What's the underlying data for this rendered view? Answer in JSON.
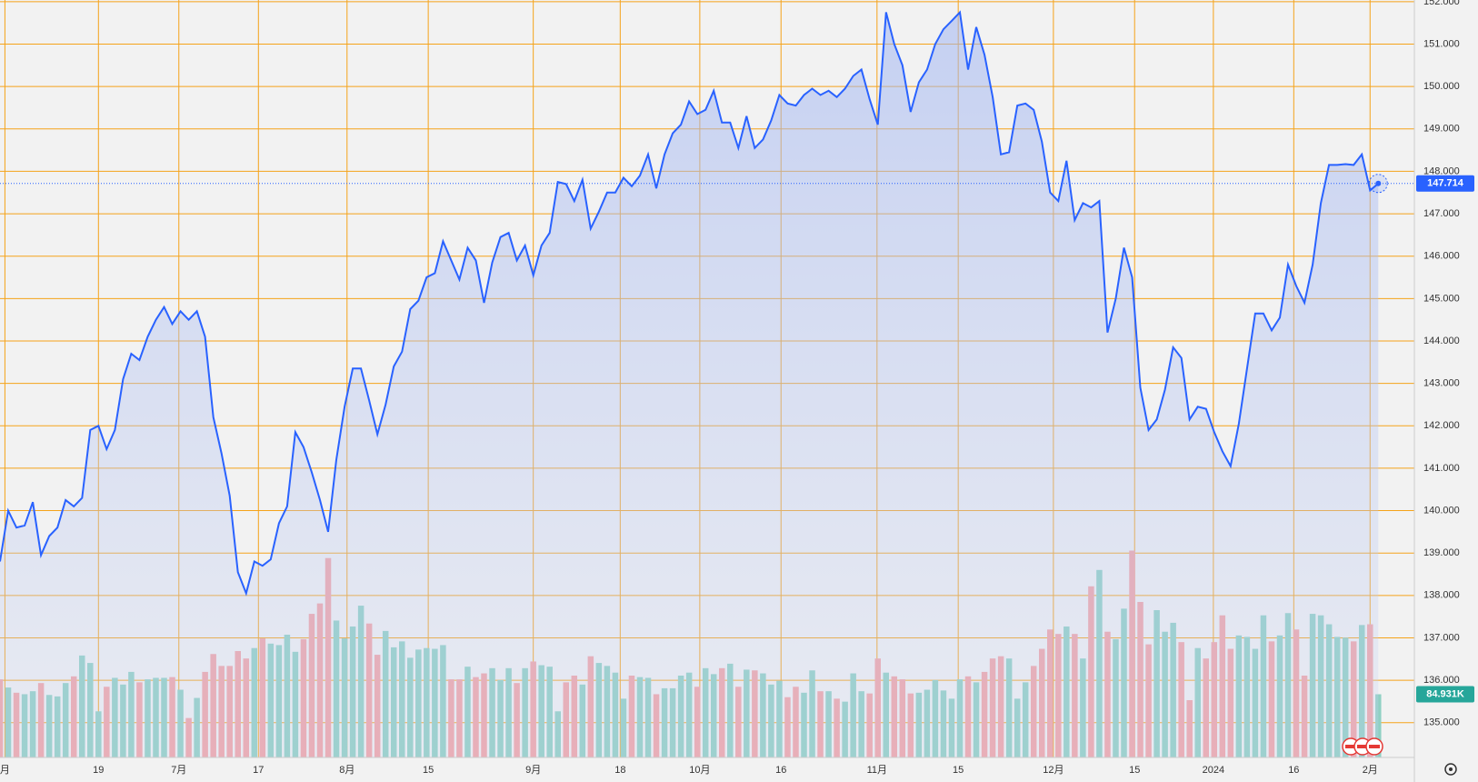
{
  "chart_data": {
    "type": "area",
    "xlim": [
      0,
      172.4
    ],
    "xticks": [
      {
        "value": 0.6,
        "label": "月"
      },
      {
        "value": 12,
        "label": "19"
      },
      {
        "value": 21.8,
        "label": "7月"
      },
      {
        "value": 31.5,
        "label": "17"
      },
      {
        "value": 42.3,
        "label": "8月"
      },
      {
        "value": 52.2,
        "label": "15"
      },
      {
        "value": 65,
        "label": "9月"
      },
      {
        "value": 75.6,
        "label": "18"
      },
      {
        "value": 85.3,
        "label": "10月"
      },
      {
        "value": 95.2,
        "label": "16"
      },
      {
        "value": 106.9,
        "label": "11月"
      },
      {
        "value": 116.8,
        "label": "15"
      },
      {
        "value": 128.4,
        "label": "12月"
      },
      {
        "value": 138.3,
        "label": "15"
      },
      {
        "value": 147.9,
        "label": "2024"
      },
      {
        "value": 157.7,
        "label": "16"
      },
      {
        "value": 167,
        "label": "2月"
      }
    ],
    "ylim": [
      134.18,
      152.04
    ],
    "yticks": [
      {
        "value": 135,
        "label": "135.000"
      },
      {
        "value": 136,
        "label": "136.000"
      },
      {
        "value": 137,
        "label": "137.000"
      },
      {
        "value": 138,
        "label": "138.000"
      },
      {
        "value": 139,
        "label": "139.000"
      },
      {
        "value": 140,
        "label": "140.000"
      },
      {
        "value": 141,
        "label": "141.000"
      },
      {
        "value": 142,
        "label": "142.000"
      },
      {
        "value": 143,
        "label": "143.000"
      },
      {
        "value": 144,
        "label": "144.000"
      },
      {
        "value": 145,
        "label": "145.000"
      },
      {
        "value": 146,
        "label": "146.000"
      },
      {
        "value": 147,
        "label": "147.000"
      },
      {
        "value": 148,
        "label": "148.000"
      },
      {
        "value": 149,
        "label": "149.000"
      },
      {
        "value": 150,
        "label": "150.000"
      },
      {
        "value": 151,
        "label": "151.000"
      },
      {
        "value": 152,
        "label": "152.000"
      }
    ],
    "grid": true,
    "grid_color": "#f5a31a",
    "series": [
      {
        "color": "#2962ff",
        "values": [
          138.8,
          140.0,
          139.6,
          139.65,
          140.2,
          138.95,
          139.4,
          139.6,
          140.25,
          140.1,
          140.3,
          141.9,
          142.0,
          141.45,
          141.9,
          143.1,
          143.7,
          143.55,
          144.1,
          144.5,
          144.8,
          144.4,
          144.7,
          144.5,
          144.7,
          144.1,
          142.2,
          141.35,
          140.35,
          138.55,
          138.05,
          138.8,
          138.7,
          138.85,
          139.7,
          140.1,
          141.85,
          141.5,
          140.9,
          140.25,
          139.5,
          141.2,
          142.45,
          143.35,
          143.35,
          142.6,
          141.8,
          142.5,
          143.4,
          143.75,
          144.75,
          144.95,
          145.5,
          145.6,
          146.35,
          145.9,
          145.45,
          146.2,
          145.9,
          144.9,
          145.85,
          146.45,
          146.55,
          145.9,
          146.25,
          145.55,
          146.25,
          146.55,
          147.75,
          147.7,
          147.3,
          147.8,
          146.65,
          147.05,
          147.5,
          147.5,
          147.85,
          147.65,
          147.9,
          148.4,
          147.6,
          148.4,
          148.9,
          149.1,
          149.65,
          149.35,
          149.45,
          149.9,
          149.15,
          149.15,
          148.55,
          149.3,
          148.55,
          148.75,
          149.2,
          149.8,
          149.6,
          149.55,
          149.8,
          149.95,
          149.8,
          149.9,
          149.75,
          149.95,
          150.25,
          150.4,
          149.7,
          149.1,
          151.75,
          151.0,
          150.5,
          149.4,
          150.1,
          150.4,
          151.0,
          151.35,
          151.55,
          151.75,
          150.4,
          151.4,
          150.75,
          149.75,
          148.4,
          148.45,
          149.55,
          149.6,
          149.45,
          148.7,
          147.5,
          147.3,
          148.25,
          146.85,
          147.25,
          147.15,
          147.3,
          144.2,
          145.0,
          146.2,
          145.5,
          142.9,
          141.9,
          142.15,
          142.85,
          143.85,
          143.6,
          142.15,
          142.45,
          142.4,
          141.85,
          141.4,
          141.05,
          142.05,
          143.35,
          144.65,
          144.65,
          144.25,
          144.55,
          145.8,
          145.3,
          144.9,
          145.8,
          147.25,
          148.15,
          148.15,
          148.17,
          148.15,
          148.4,
          147.55,
          147.714
        ]
      },
      {
        "axis": "volume",
        "up_color": "#8fd0c3",
        "down_color": "#f2a3a5",
        "last_value_label": "84.931K",
        "values": [
          105,
          94,
          87,
          85,
          89,
          100,
          84,
          82,
          100,
          109,
          137,
          127,
          62,
          95,
          107,
          98,
          115,
          101,
          105,
          107,
          107,
          108,
          91,
          53,
          80,
          115,
          139,
          123,
          123,
          143,
          133,
          147,
          160,
          153,
          151,
          165,
          142,
          159,
          193,
          207,
          268,
          184,
          160,
          176,
          204,
          180,
          138,
          170,
          148,
          156,
          134,
          145,
          147,
          146,
          151,
          105,
          105,
          122,
          108,
          113,
          120,
          104,
          120,
          100,
          120,
          129,
          124,
          122,
          62,
          101,
          110,
          98,
          136,
          127,
          123,
          114,
          79,
          110,
          108,
          107,
          85,
          93,
          93,
          110,
          114,
          95,
          120,
          112,
          120,
          126,
          95,
          118,
          117,
          113,
          98,
          103,
          81,
          95,
          87,
          117,
          89,
          89,
          79,
          75,
          113,
          89,
          86,
          133,
          114,
          109,
          105,
          86,
          87,
          91,
          104,
          90,
          79,
          105,
          109,
          101,
          115,
          133,
          136,
          133,
          79,
          101,
          123,
          146,
          172,
          166,
          176,
          166,
          133,
          230,
          252,
          169,
          159,
          200,
          278,
          209,
          152,
          198,
          169,
          181,
          155,
          77,
          147,
          133,
          155,
          191,
          146,
          164,
          162,
          146,
          191,
          156,
          164,
          194,
          172,
          110,
          193,
          191,
          179,
          162,
          161,
          156,
          178,
          179,
          84.931
        ]
      }
    ],
    "volume_ylim": [
      0,
      1018
    ]
  }
}
